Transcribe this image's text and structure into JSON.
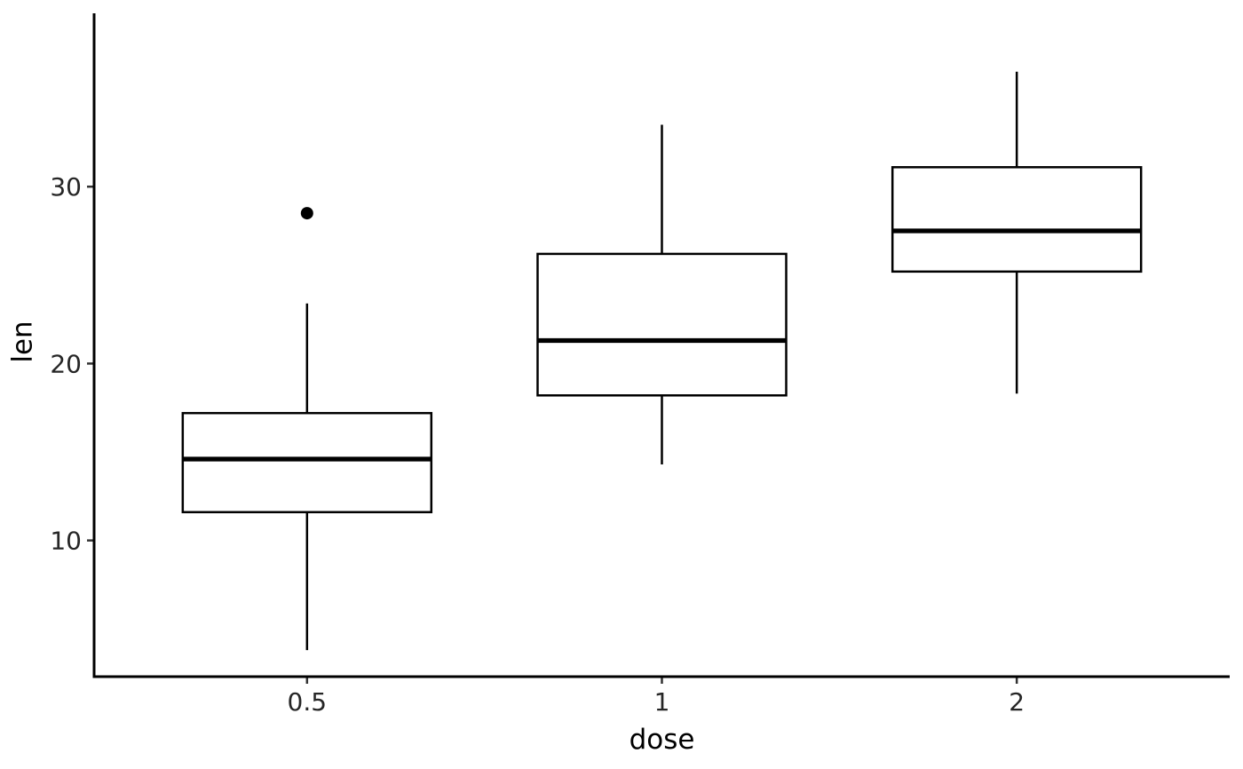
{
  "figure": {
    "background": "#ffffff",
    "axis_color": "#000000",
    "tick_color": "#333333",
    "tick_label_color": "#262626",
    "box_stroke": "#000000",
    "box_fill": "#ffffff",
    "outlier_color": "#000000"
  },
  "chart_data": {
    "type": "boxplot",
    "title": "",
    "xlabel": "dose",
    "ylabel": "len",
    "categories": [
      "0.5",
      "1",
      "2"
    ],
    "y_ticks": [
      10,
      20,
      30
    ],
    "ylim": [
      2.3,
      39.8
    ],
    "grid": false,
    "legend": "none",
    "series": [
      {
        "category": "0.5",
        "whisker_low": 3.8,
        "q1": 11.6,
        "median": 14.6,
        "q3": 17.2,
        "whisker_high": 23.4,
        "outliers": [
          28.5
        ]
      },
      {
        "category": "1",
        "whisker_low": 14.3,
        "q1": 18.2,
        "median": 21.3,
        "q3": 26.2,
        "whisker_high": 33.5,
        "outliers": []
      },
      {
        "category": "2",
        "whisker_low": 18.3,
        "q1": 25.2,
        "median": 27.5,
        "q3": 31.1,
        "whisker_high": 36.5,
        "outliers": []
      }
    ]
  }
}
